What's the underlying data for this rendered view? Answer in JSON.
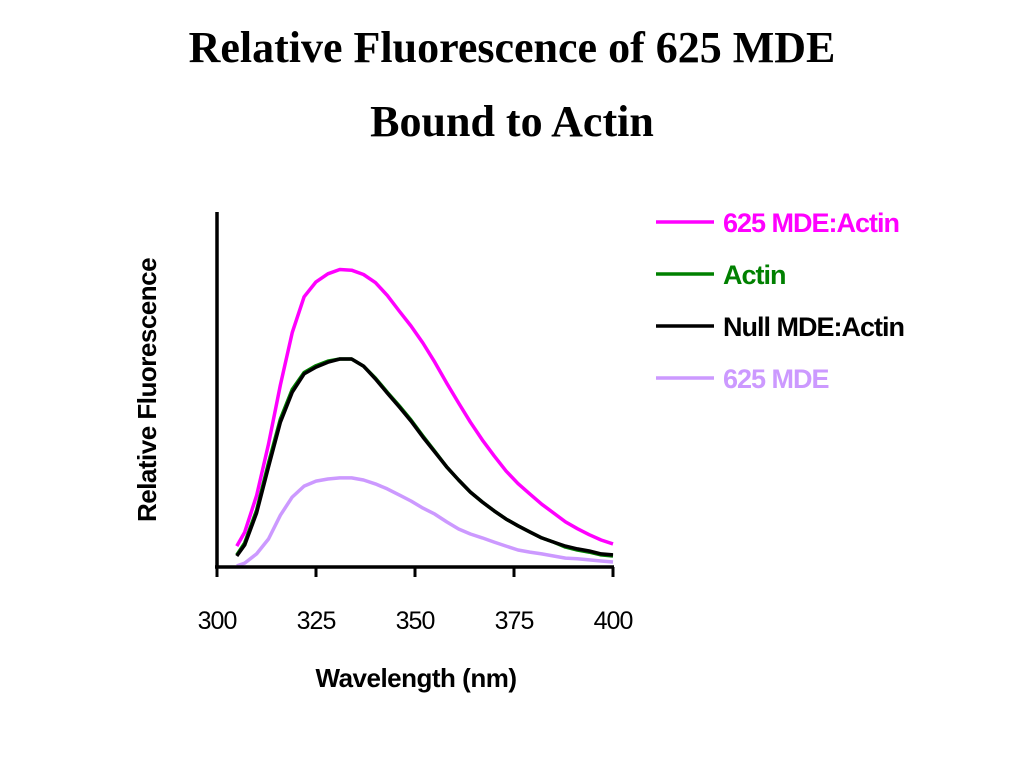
{
  "chart_data": {
    "type": "line",
    "title_lines": [
      "Relative Fluorescence of 625 MDE",
      "Bound to Actin"
    ],
    "xlabel": "Wavelength (nm)",
    "ylabel": "Relative Fluorescence",
    "xlim": [
      300,
      400
    ],
    "ylim": [
      0,
      100
    ],
    "x_ticks": [
      300,
      325,
      350,
      375,
      400
    ],
    "y_ticks_shown": false,
    "grid": false,
    "legend_position": "top-right",
    "x": [
      305,
      307,
      310,
      313,
      316,
      319,
      322,
      325,
      328,
      331,
      334,
      337,
      340,
      343,
      346,
      349,
      352,
      355,
      358,
      361,
      364,
      367,
      370,
      373,
      376,
      379,
      382,
      385,
      388,
      391,
      394,
      397,
      400
    ],
    "series": [
      {
        "name": "625 MDE:Actin",
        "color": "#ff00ff",
        "values": [
          5.9,
          9.8,
          20.1,
          34.6,
          51.3,
          66.0,
          76.1,
          80.3,
          82.6,
          83.8,
          83.6,
          82.4,
          80.1,
          76.5,
          72.1,
          67.9,
          63.1,
          57.7,
          51.8,
          46.2,
          40.8,
          35.8,
          31.3,
          27.0,
          23.5,
          20.6,
          17.7,
          15.2,
          12.7,
          10.8,
          9.1,
          7.6,
          6.5
        ]
      },
      {
        "name": "Actin",
        "color": "#008000",
        "values": [
          3.4,
          6.8,
          16.0,
          29.3,
          41.7,
          50.0,
          54.8,
          56.7,
          58.0,
          58.6,
          58.6,
          56.6,
          53.2,
          49.2,
          45.4,
          41.4,
          36.9,
          32.6,
          28.2,
          24.5,
          21.1,
          18.3,
          15.8,
          13.5,
          11.6,
          9.9,
          8.2,
          7.0,
          5.6,
          4.8,
          4.2,
          3.4,
          3.1
        ]
      },
      {
        "name": "Null MDE:Actin",
        "color": "#000000",
        "values": [
          3.1,
          6.2,
          15.2,
          28.2,
          40.8,
          49.2,
          54.4,
          56.3,
          57.7,
          58.6,
          58.6,
          56.6,
          53.0,
          49.0,
          45.1,
          41.1,
          36.6,
          32.4,
          28.2,
          24.5,
          21.1,
          18.3,
          15.8,
          13.5,
          11.6,
          9.9,
          8.2,
          7.0,
          5.9,
          5.1,
          4.5,
          3.7,
          3.4
        ]
      },
      {
        "name": "625 MDE",
        "color": "#cc99ff",
        "values": [
          0.3,
          1.1,
          3.7,
          7.9,
          14.6,
          19.7,
          22.8,
          24.2,
          24.8,
          25.1,
          25.1,
          24.5,
          23.4,
          22.0,
          20.3,
          18.6,
          16.6,
          14.9,
          12.7,
          10.7,
          9.3,
          8.2,
          7.0,
          5.9,
          4.8,
          4.2,
          3.7,
          3.1,
          2.5,
          2.3,
          2.0,
          1.7,
          1.4
        ]
      }
    ]
  }
}
